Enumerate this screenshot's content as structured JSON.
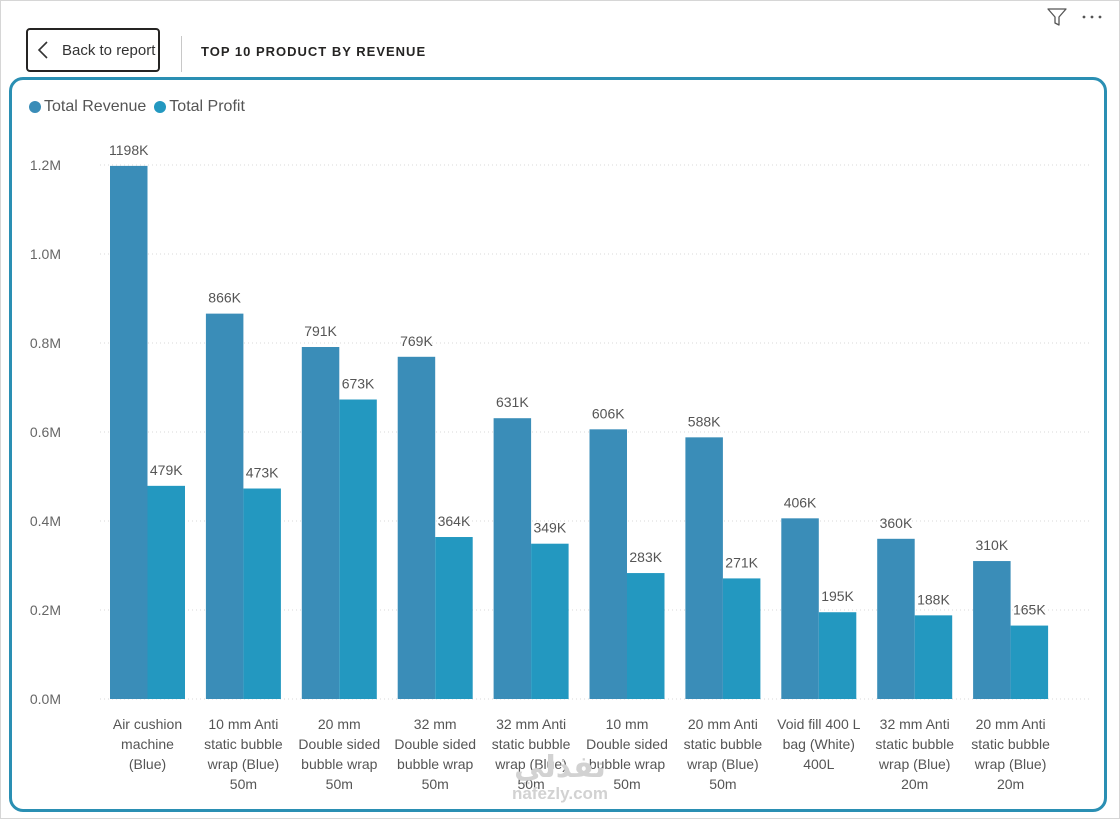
{
  "header": {
    "back_label": "Back to report",
    "title": "TOP 10 PRODUCT BY REVENUE"
  },
  "icons": {
    "back": "chevron-left-icon",
    "filter": "filter-icon",
    "more": "more-options-icon"
  },
  "colors": {
    "revenue": "#3a8db8",
    "profit": "#2398c0",
    "card_border": "#2a8fb3"
  },
  "watermark": {
    "main": "نفذلي",
    "url": "nafezly.com"
  },
  "chart_data": {
    "type": "bar",
    "title": "",
    "xlabel": "",
    "ylabel": "",
    "legend_position": "top-left",
    "grid": true,
    "ylim": [
      0,
      1200000
    ],
    "yticks": [
      "0.0M",
      "0.2M",
      "0.4M",
      "0.6M",
      "0.8M",
      "1.0M",
      "1.2M"
    ],
    "categories": [
      "Air cushion machine (Blue)",
      "10 mm Anti static bubble wrap (Blue) 50m",
      "20 mm Double sided bubble wrap 50m",
      "32 mm Double sided bubble wrap 50m",
      "32 mm Anti static bubble wrap (Blue) 50m",
      "10 mm Double sided bubble wrap 50m",
      "20 mm Anti static bubble wrap (Blue) 50m",
      "Void fill 400 L bag (White) 400L",
      "32 mm Anti static bubble wrap (Blue) 20m",
      "20 mm Anti static bubble wrap (Blue) 20m"
    ],
    "category_lines": [
      [
        "Air cushion",
        "machine",
        "(Blue)"
      ],
      [
        "10 mm Anti",
        "static bubble",
        "wrap (Blue)",
        "50m"
      ],
      [
        "20 mm",
        "Double sided",
        "bubble wrap",
        "50m"
      ],
      [
        "32 mm",
        "Double sided",
        "bubble wrap",
        "50m"
      ],
      [
        "32 mm Anti",
        "static bubble",
        "wrap (Blue)",
        "50m"
      ],
      [
        "10 mm",
        "Double sided",
        "bubble wrap",
        "50m"
      ],
      [
        "20 mm Anti",
        "static bubble",
        "wrap (Blue)",
        "50m"
      ],
      [
        "Void fill 400 L",
        "bag (White)",
        "400L"
      ],
      [
        "32 mm Anti",
        "static bubble",
        "wrap (Blue)",
        "20m"
      ],
      [
        "20 mm Anti",
        "static bubble",
        "wrap (Blue)",
        "20m"
      ]
    ],
    "series": [
      {
        "name": "Total Revenue",
        "values": [
          1198000,
          866000,
          791000,
          769000,
          631000,
          606000,
          588000,
          406000,
          360000,
          310000
        ],
        "labels": [
          "1198K",
          "866K",
          "791K",
          "769K",
          "631K",
          "606K",
          "588K",
          "406K",
          "360K",
          "310K"
        ]
      },
      {
        "name": "Total Profit",
        "values": [
          479000,
          473000,
          673000,
          364000,
          349000,
          283000,
          271000,
          195000,
          188000,
          165000
        ],
        "labels": [
          "479K",
          "473K",
          "673K",
          "364K",
          "349K",
          "283K",
          "271K",
          "195K",
          "188K",
          "165K"
        ]
      }
    ]
  }
}
